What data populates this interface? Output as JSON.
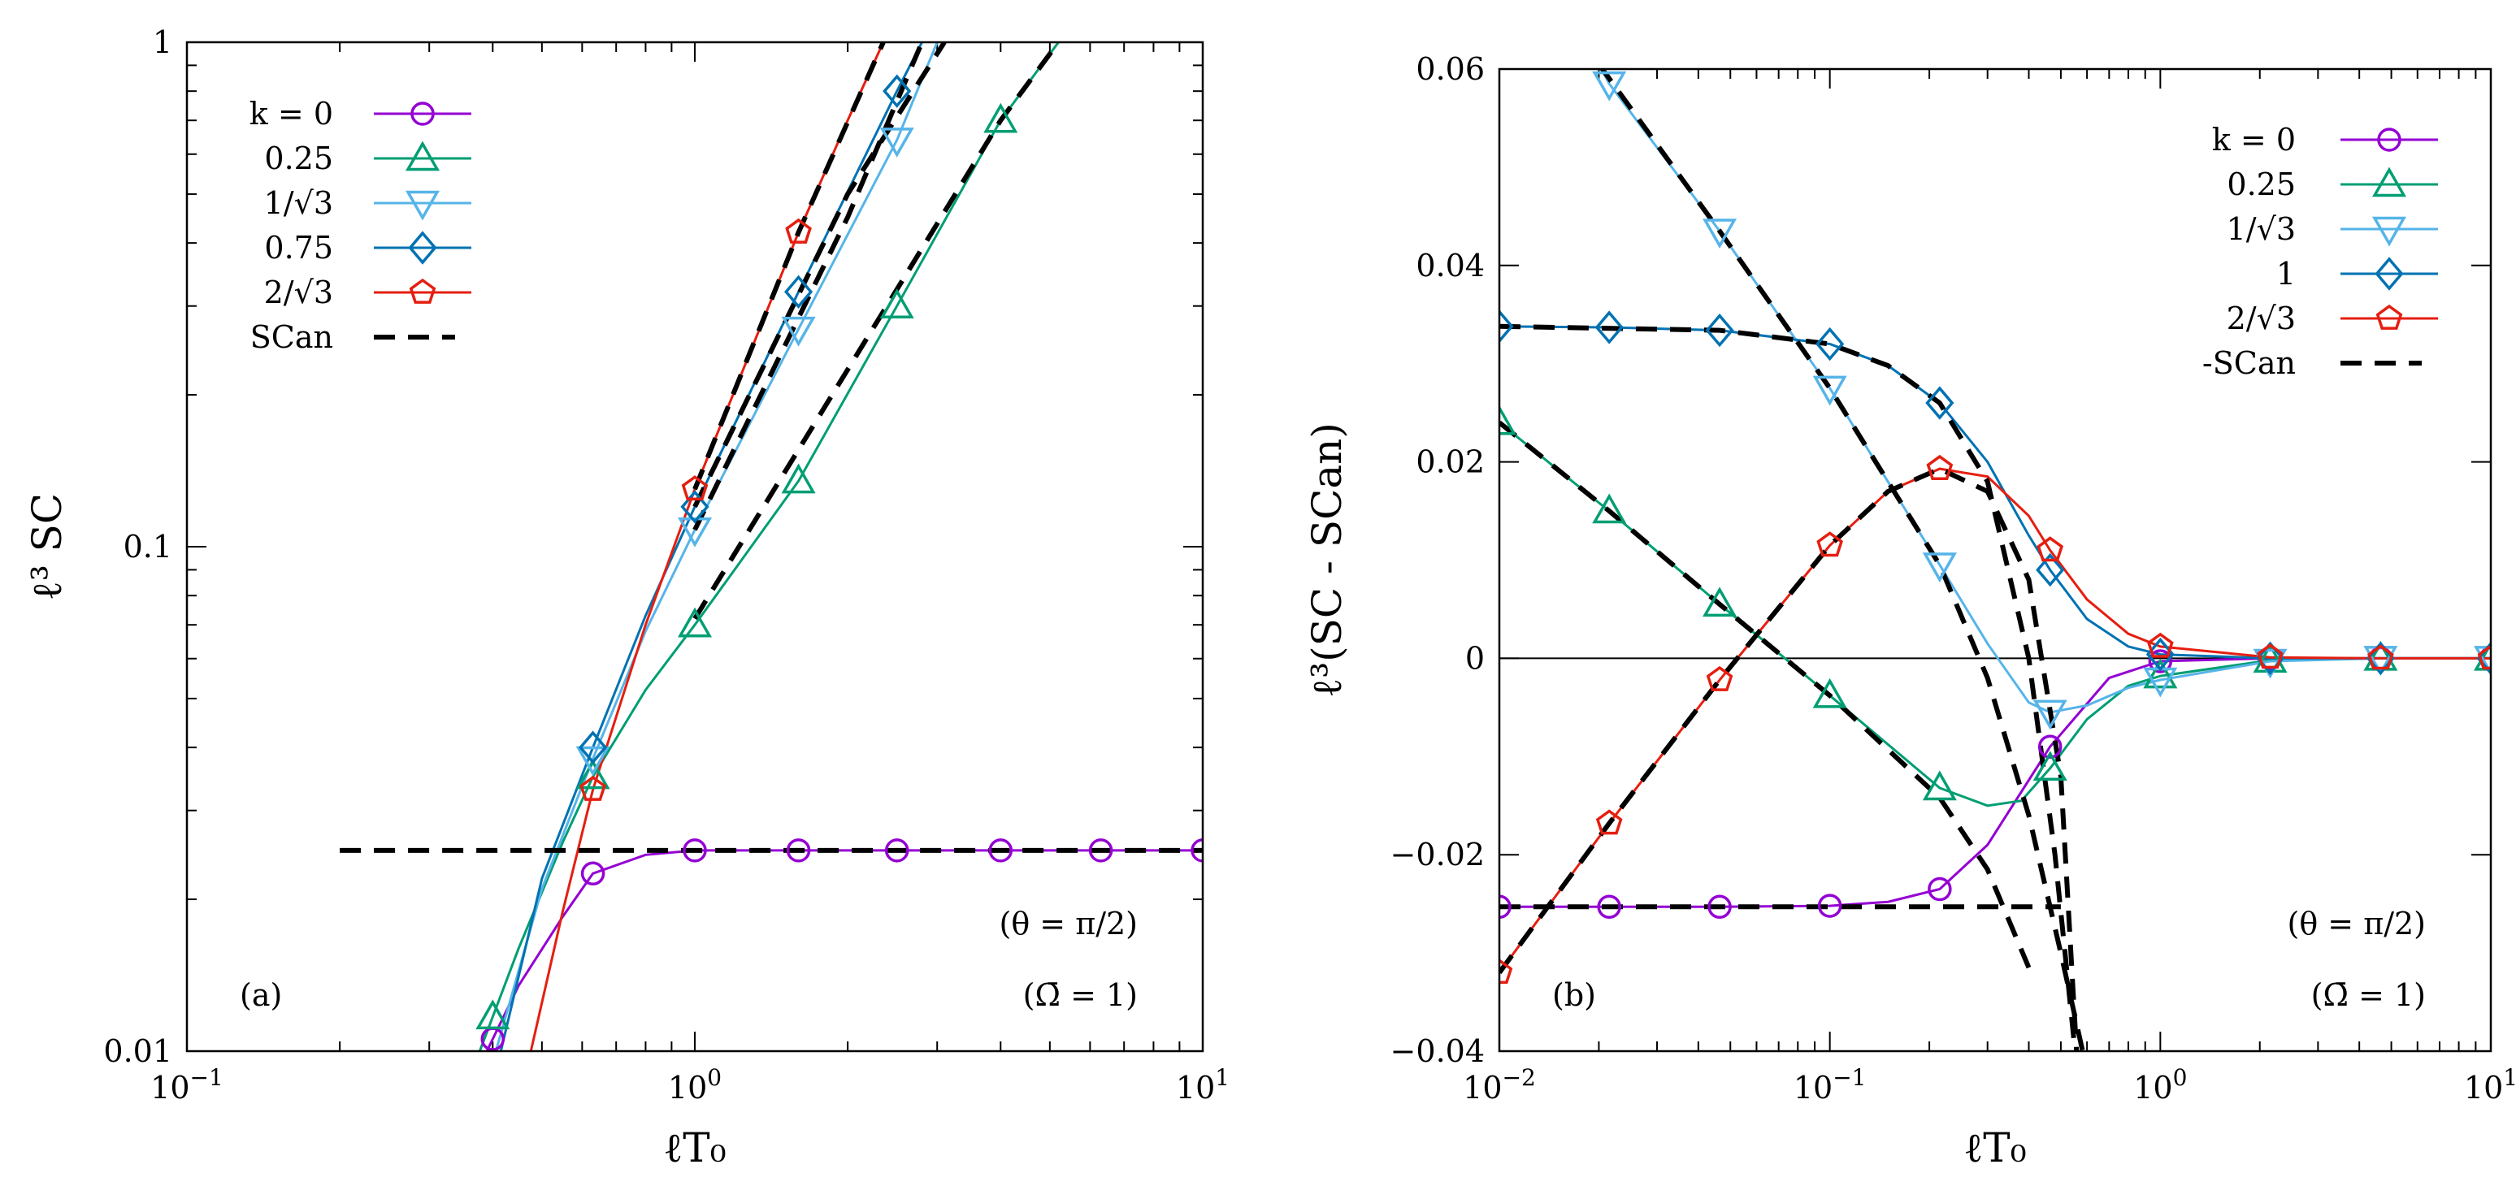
{
  "chart_data": [
    {
      "panel": "(a)",
      "type": "line",
      "xscale": "log",
      "yscale": "log",
      "xlim": [
        0.1,
        10
      ],
      "ylim": [
        0.01,
        1
      ],
      "xlabel": "ℓT₀",
      "ylabel": "ℓ³ SC",
      "x_ticks": [
        {
          "v": 0.1,
          "base": "10",
          "exp": "−1"
        },
        {
          "v": 1,
          "base": "10",
          "exp": "0"
        },
        {
          "v": 10,
          "base": "10",
          "exp": "1"
        }
      ],
      "y_ticks": [
        {
          "v": 0.01,
          "label": "0.01"
        },
        {
          "v": 0.1,
          "label": "0.1"
        },
        {
          "v": 1,
          "label": "1"
        }
      ],
      "annotations": [
        "(a)",
        "(θ = π/2)",
        "(Ω̄ = 1)"
      ],
      "legend": {
        "placement": "top-left"
      },
      "series": [
        {
          "name": "k = 0",
          "color": "#9400d3",
          "marker": "circle",
          "x": [
            0.38,
            0.45,
            0.55,
            0.63,
            0.8,
            1.0,
            1.3,
            1.6,
            2.5,
            4.0,
            6.3,
            10.0
          ],
          "y": [
            0.0095,
            0.0135,
            0.0185,
            0.0225,
            0.0245,
            0.025,
            0.025,
            0.025,
            0.025,
            0.025,
            0.025,
            0.025
          ],
          "markers_x": [
            0.4,
            0.63,
            1.0,
            1.6,
            2.5,
            4.0,
            6.3,
            10.0
          ]
        },
        {
          "name": "0.25",
          "color": "#009e73",
          "marker": "triangle-up",
          "x": [
            0.37,
            0.45,
            0.55,
            0.63,
            0.8,
            1.0,
            1.6,
            2.5,
            4.0,
            5.2
          ],
          "y": [
            0.0095,
            0.016,
            0.026,
            0.035,
            0.052,
            0.07,
            0.135,
            0.3,
            0.7,
            1.0
          ],
          "markers_x": [
            0.4,
            0.63,
            1.0,
            1.6,
            2.5,
            4.0
          ]
        },
        {
          "name": "1/√3",
          "color": "#56b4e9",
          "marker": "triangle-down",
          "x": [
            0.4,
            0.5,
            0.63,
            0.8,
            1.0,
            1.6,
            2.5,
            3.0
          ],
          "y": [
            0.0095,
            0.021,
            0.038,
            0.068,
            0.108,
            0.27,
            0.64,
            1.0
          ],
          "markers_x": [
            0.63,
            1.0,
            1.6,
            2.5
          ]
        },
        {
          "name": "0.75",
          "color": "#0072b2",
          "marker": "diamond",
          "x": [
            0.41,
            0.5,
            0.63,
            0.8,
            1.0,
            1.6,
            2.5,
            2.8
          ],
          "y": [
            0.0095,
            0.022,
            0.04,
            0.073,
            0.12,
            0.32,
            0.8,
            1.0
          ],
          "markers_x": [
            0.63,
            1.0,
            1.6,
            2.5
          ]
        },
        {
          "name": "2/√3",
          "color": "#e51e10",
          "marker": "pentagon",
          "x": [
            0.47,
            0.55,
            0.63,
            0.8,
            1.0,
            1.3,
            1.6,
            2.0,
            2.35
          ],
          "y": [
            0.0095,
            0.019,
            0.033,
            0.07,
            0.13,
            0.25,
            0.42,
            0.7,
            1.0
          ],
          "markers_x": [
            0.63,
            1.0,
            1.6
          ]
        },
        {
          "name": "SCan",
          "color": "#000000",
          "marker": "none",
          "dashed": true,
          "segments": [
            {
              "x": [
                0.2,
                10.0
              ],
              "y": [
                0.025,
                0.025
              ]
            },
            {
              "x": [
                1.0,
                4.0,
                5.2
              ],
              "y": [
                0.072,
                0.7,
                1.0
              ]
            },
            {
              "x": [
                1.0,
                2.0,
                2.8
              ],
              "y": [
                0.108,
                0.45,
                1.0
              ]
            },
            {
              "x": [
                1.0,
                2.0,
                3.1
              ],
              "y": [
                0.12,
                0.5,
                1.0
              ]
            },
            {
              "x": [
                1.0,
                1.6,
                2.35
              ],
              "y": [
                0.13,
                0.42,
                1.0
              ]
            }
          ]
        }
      ]
    },
    {
      "panel": "(b)",
      "type": "line",
      "xscale": "log",
      "yscale": "linear",
      "xlim": [
        0.01,
        10
      ],
      "ylim": [
        -0.04,
        0.06
      ],
      "xlabel": "ℓT₀",
      "ylabel": "ℓ³(SC - SCan)",
      "x_ticks": [
        {
          "v": 0.01,
          "base": "10",
          "exp": "−2"
        },
        {
          "v": 0.1,
          "base": "10",
          "exp": "−1"
        },
        {
          "v": 1,
          "base": "10",
          "exp": "0"
        },
        {
          "v": 10,
          "base": "10",
          "exp": "1"
        }
      ],
      "y_ticks": [
        {
          "v": -0.04,
          "label": "−0.04"
        },
        {
          "v": -0.02,
          "label": "−0.02"
        },
        {
          "v": 0,
          "label": "0"
        },
        {
          "v": 0.02,
          "label": "0.02"
        },
        {
          "v": 0.04,
          "label": "0.04"
        },
        {
          "v": 0.06,
          "label": "0.06"
        }
      ],
      "annotations": [
        "(b)",
        "(θ = π/2)",
        "(Ω̄ = 1)"
      ],
      "legend": {
        "placement": "top-right"
      },
      "series": [
        {
          "name": "k = 0",
          "color": "#9400d3",
          "marker": "circle",
          "x": [
            0.01,
            0.0215,
            0.0464,
            0.1,
            0.15,
            0.215,
            0.3,
            0.464,
            0.7,
            1.0,
            2.15,
            4.64,
            10.0
          ],
          "y": [
            -0.0253,
            -0.0253,
            -0.0253,
            -0.0252,
            -0.0248,
            -0.0235,
            -0.019,
            -0.009,
            -0.002,
            -0.0003,
            0,
            0,
            0
          ],
          "markers_x": [
            0.01,
            0.0215,
            0.0464,
            0.1,
            0.215,
            0.464,
            1.0,
            2.15,
            4.64,
            10.0
          ]
        },
        {
          "name": "0.25",
          "color": "#009e73",
          "marker": "triangle-up",
          "x": [
            0.01,
            0.0215,
            0.0464,
            0.1,
            0.215,
            0.3,
            0.38,
            0.464,
            0.6,
            0.8,
            1.0,
            2.15,
            4.64,
            10.0
          ],
          "y": [
            0.024,
            0.015,
            0.0055,
            -0.0038,
            -0.0132,
            -0.015,
            -0.0145,
            -0.0112,
            -0.0062,
            -0.0028,
            -0.0018,
            -0.0002,
            0,
            0
          ],
          "markers_x": [
            0.01,
            0.0215,
            0.0464,
            0.1,
            0.215,
            0.464,
            1.0,
            2.15,
            4.64,
            10.0
          ]
        },
        {
          "name": "1/√3",
          "color": "#56b4e9",
          "marker": "triangle-down",
          "x": [
            0.02,
            0.0215,
            0.0464,
            0.1,
            0.215,
            0.3,
            0.4,
            0.464,
            0.6,
            0.8,
            1.0,
            2.15,
            4.64,
            10.0
          ],
          "y": [
            0.0605,
            0.0585,
            0.0435,
            0.0275,
            0.0095,
            0.0015,
            -0.0045,
            -0.0055,
            -0.0048,
            -0.003,
            -0.0022,
            -0.0003,
            0,
            0
          ],
          "markers_x": [
            0.0215,
            0.0464,
            0.1,
            0.215,
            0.464,
            1.0,
            2.15,
            4.64,
            10.0
          ]
        },
        {
          "name": "1",
          "color": "#0072b2",
          "marker": "diamond",
          "x": [
            0.01,
            0.0215,
            0.0464,
            0.1,
            0.15,
            0.215,
            0.3,
            0.4,
            0.464,
            0.6,
            0.8,
            1.0,
            2.15,
            4.64,
            10.0
          ],
          "y": [
            0.0338,
            0.0337,
            0.0334,
            0.032,
            0.0298,
            0.026,
            0.02,
            0.0125,
            0.009,
            0.004,
            0.0012,
            0.0004,
            0,
            0,
            0
          ],
          "markers_x": [
            0.01,
            0.0215,
            0.0464,
            0.1,
            0.215,
            0.464,
            1.0,
            2.15,
            4.64,
            10.0
          ]
        },
        {
          "name": "2/√3",
          "color": "#e51e10",
          "marker": "pentagon",
          "x": [
            0.01,
            0.0215,
            0.0464,
            0.1,
            0.15,
            0.215,
            0.3,
            0.4,
            0.464,
            0.6,
            0.8,
            1.0,
            2.15,
            4.64,
            10.0
          ],
          "y": [
            -0.032,
            -0.0168,
            -0.0022,
            0.0115,
            0.017,
            0.0193,
            0.0185,
            0.0145,
            0.011,
            0.006,
            0.0025,
            0.0012,
            0.0001,
            0,
            0
          ],
          "markers_x": [
            0.01,
            0.0215,
            0.0464,
            0.1,
            0.215,
            0.464,
            1.0,
            2.15,
            4.64,
            10.0
          ]
        },
        {
          "name": "-SCan",
          "color": "#000000",
          "marker": "none",
          "dashed": true,
          "segments": [
            {
              "x": [
                0.01,
                0.5
              ],
              "y": [
                -0.0253,
                -0.0253
              ]
            },
            {
              "x": [
                0.01,
                0.0215,
                0.0464,
                0.1,
                0.215,
                0.3,
                0.4
              ],
              "y": [
                0.024,
                0.015,
                0.0055,
                -0.0038,
                -0.0142,
                -0.0215,
                -0.0315
              ]
            },
            {
              "x": [
                0.02,
                0.0464,
                0.1,
                0.215,
                0.3,
                0.4,
                0.5,
                0.6
              ],
              "y": [
                0.0605,
                0.0435,
                0.0275,
                0.0095,
                -0.002,
                -0.016,
                -0.03,
                -0.042
              ]
            },
            {
              "x": [
                0.01,
                0.0464,
                0.1,
                0.15,
                0.215,
                0.3,
                0.4,
                0.48,
                0.56
              ],
              "y": [
                0.0338,
                0.0334,
                0.032,
                0.0298,
                0.026,
                0.018,
                0.0,
                -0.02,
                -0.042
              ]
            },
            {
              "x": [
                0.01,
                0.0215,
                0.0464,
                0.1,
                0.15,
                0.215,
                0.3,
                0.4,
                0.5,
                0.56
              ],
              "y": [
                -0.032,
                -0.0168,
                -0.0022,
                0.0115,
                0.017,
                0.0193,
                0.017,
                0.008,
                -0.012,
                -0.041
              ]
            }
          ]
        }
      ]
    }
  ]
}
